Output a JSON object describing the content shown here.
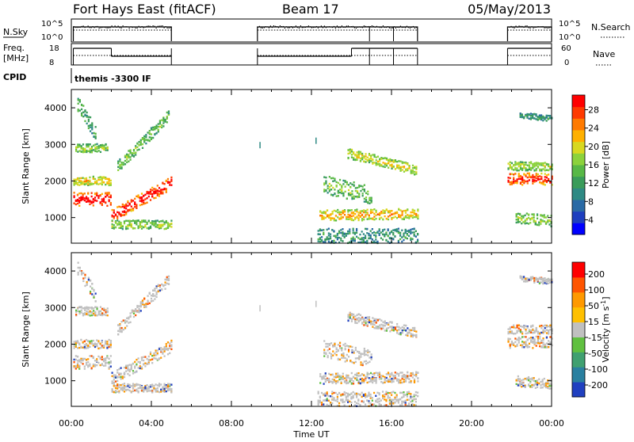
{
  "header": {
    "station": "Fort Hays East (fitACF)",
    "beam": "Beam 17",
    "date": "05/May/2013"
  },
  "panels": {
    "nsky": {
      "label": "N.Sky",
      "right_label": "N.Search",
      "ticks_left": [
        "10^5",
        "10^0"
      ],
      "ticks_right": [
        "10^5",
        "10^0"
      ]
    },
    "freq": {
      "label_top": "Freq.",
      "label_bottom": "[MHz]",
      "right_label": "Nave",
      "ticks_left": [
        "18",
        "8"
      ],
      "ticks_right": [
        "60",
        "0"
      ]
    },
    "cpid": {
      "label": "CPID",
      "text": "themis -3300 IF"
    }
  },
  "chart_data": [
    {
      "type": "heatmap",
      "name": "power",
      "ylabel": "Slant Range [km]",
      "ylim": [
        300,
        4500
      ],
      "yticks": [
        "4000",
        "3000",
        "2000",
        "1000"
      ],
      "colorbar": {
        "label": "Power [dB]",
        "ticks": [
          "28",
          "24",
          "20",
          "16",
          "12",
          "8",
          "4"
        ],
        "colors": [
          "#0000ff",
          "#1e3fbf",
          "#2a6aa5",
          "#2f8a84",
          "#3a9c5a",
          "#58b846",
          "#8cd23c",
          "#d8d820",
          "#ffb000",
          "#ff7a00",
          "#ff3a00",
          "#ff0000"
        ]
      }
    },
    {
      "type": "heatmap",
      "name": "velocity",
      "ylabel": "Slant Range [km]",
      "ylim": [
        300,
        4500
      ],
      "yticks": [
        "4000",
        "3000",
        "2000",
        "1000"
      ],
      "colorbar": {
        "label_main": "Velocity [m s",
        "label_sup": "-1",
        "label_end": "]",
        "ticks": [
          "200",
          "100",
          "50",
          "15",
          "-15",
          "-50",
          "-100",
          "-200"
        ],
        "colors": [
          "#ff0000",
          "#ff5500",
          "#ff9900",
          "#ffc000",
          "#c0c0c0",
          "#60c040",
          "#40a070",
          "#2a80a0",
          "#2040c0"
        ]
      }
    }
  ],
  "xaxis": {
    "label": "Time UT",
    "ticks": [
      "00:00",
      "04:00",
      "08:00",
      "12:00",
      "16:00",
      "20:00",
      "00:00"
    ]
  }
}
